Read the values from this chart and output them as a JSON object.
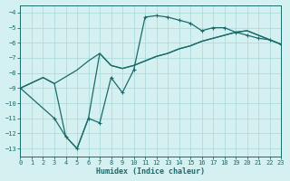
{
  "xlabel": "Humidex (Indice chaleur)",
  "bg_color": "#d4f0f0",
  "grid_color": "#a8d8d8",
  "line_color": "#1a6b6b",
  "xlim": [
    0,
    23
  ],
  "ylim": [
    -13.5,
    -3.5
  ],
  "xticks": [
    0,
    1,
    2,
    3,
    4,
    5,
    6,
    7,
    8,
    9,
    10,
    11,
    12,
    13,
    14,
    15,
    16,
    17,
    18,
    19,
    20,
    21,
    22,
    23
  ],
  "yticks": [
    -4,
    -5,
    -6,
    -7,
    -8,
    -9,
    -10,
    -11,
    -12,
    -13
  ],
  "curve_zigzag_x": [
    0,
    3,
    4,
    5,
    6,
    7,
    8,
    9,
    10,
    11,
    12,
    13,
    14,
    15,
    16,
    17,
    18,
    19,
    20,
    21,
    22,
    23
  ],
  "curve_zigzag_y": [
    -9.0,
    -11.0,
    -12.2,
    -13.0,
    -11.0,
    -11.3,
    -8.3,
    -9.3,
    -7.8,
    -4.3,
    -4.2,
    -4.3,
    -4.5,
    -4.7,
    -5.2,
    -5.0,
    -5.0,
    -5.3,
    -5.5,
    -5.7,
    -5.8,
    -6.1
  ],
  "curve_top_x": [
    0,
    2,
    3,
    5,
    6,
    7,
    8,
    9,
    10,
    11,
    12,
    13,
    14,
    15,
    16,
    17,
    18,
    19,
    20,
    21,
    22,
    23
  ],
  "curve_top_y": [
    -9.0,
    -8.3,
    -8.7,
    -7.8,
    -7.2,
    -6.7,
    -7.5,
    -7.7,
    -7.5,
    -7.2,
    -6.9,
    -6.7,
    -6.4,
    -6.2,
    -5.9,
    -5.7,
    -5.5,
    -5.3,
    -5.2,
    -5.5,
    -5.8,
    -6.1
  ],
  "curve_diag_x": [
    0,
    2,
    3,
    4,
    5,
    6,
    7,
    8,
    9,
    10,
    11,
    12,
    13,
    14,
    15,
    16,
    17,
    18,
    19,
    20,
    21,
    22,
    23
  ],
  "curve_diag_y": [
    -9.0,
    -8.3,
    -8.7,
    -12.2,
    -13.0,
    -11.0,
    -6.7,
    -7.5,
    -7.7,
    -7.5,
    -7.2,
    -6.9,
    -6.7,
    -6.4,
    -6.2,
    -5.9,
    -5.7,
    -5.5,
    -5.3,
    -5.2,
    -5.5,
    -5.8,
    -6.1
  ]
}
